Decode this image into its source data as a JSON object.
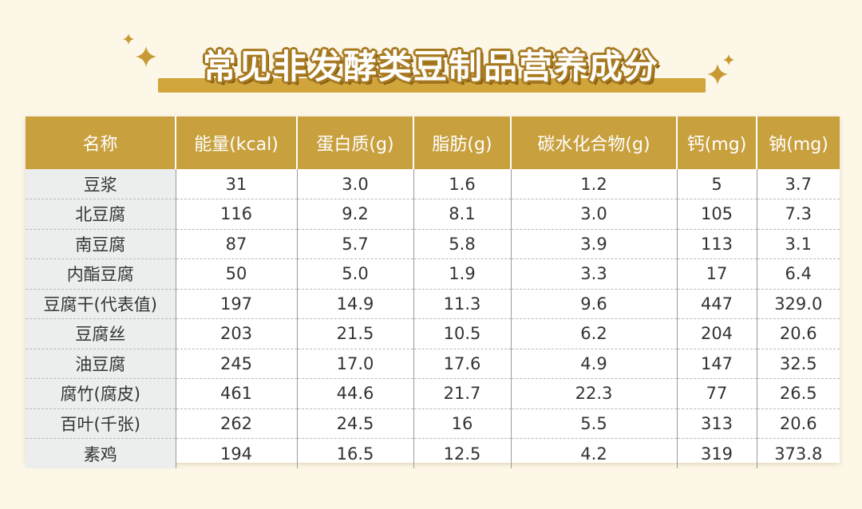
{
  "title": "常见非发酵类豆制品营养成分",
  "colors": {
    "header": "#c8a03e",
    "title_outline": "#a87a20",
    "background": "#fdf7e8"
  },
  "table": {
    "headers": [
      "名称",
      "能量(kcal)",
      "蛋白质(g)",
      "脂肪(g)",
      "碳水化合物(g)",
      "钙(mg)",
      "钠(mg)"
    ],
    "rows": [
      [
        "豆浆",
        "31",
        "3.0",
        "1.6",
        "1.2",
        "5",
        "3.7"
      ],
      [
        "北豆腐",
        "116",
        "9.2",
        "8.1",
        "3.0",
        "105",
        "7.3"
      ],
      [
        "南豆腐",
        "87",
        "5.7",
        "5.8",
        "3.9",
        "113",
        "3.1"
      ],
      [
        "内酯豆腐",
        "50",
        "5.0",
        "1.9",
        "3.3",
        "17",
        "6.4"
      ],
      [
        "豆腐干(代表值)",
        "197",
        "14.9",
        "11.3",
        "9.6",
        "447",
        "329.0"
      ],
      [
        "豆腐丝",
        "203",
        "21.5",
        "10.5",
        "6.2",
        "204",
        "20.6"
      ],
      [
        "油豆腐",
        "245",
        "17.0",
        "17.6",
        "4.9",
        "147",
        "32.5"
      ],
      [
        "腐竹(腐皮)",
        "461",
        "44.6",
        "21.7",
        "22.3",
        "77",
        "26.5"
      ],
      [
        "百叶(千张)",
        "262",
        "24.5",
        "16",
        "5.5",
        "313",
        "20.6"
      ],
      [
        "素鸡",
        "194",
        "16.5",
        "12.5",
        "4.2",
        "319",
        "373.8"
      ]
    ]
  }
}
